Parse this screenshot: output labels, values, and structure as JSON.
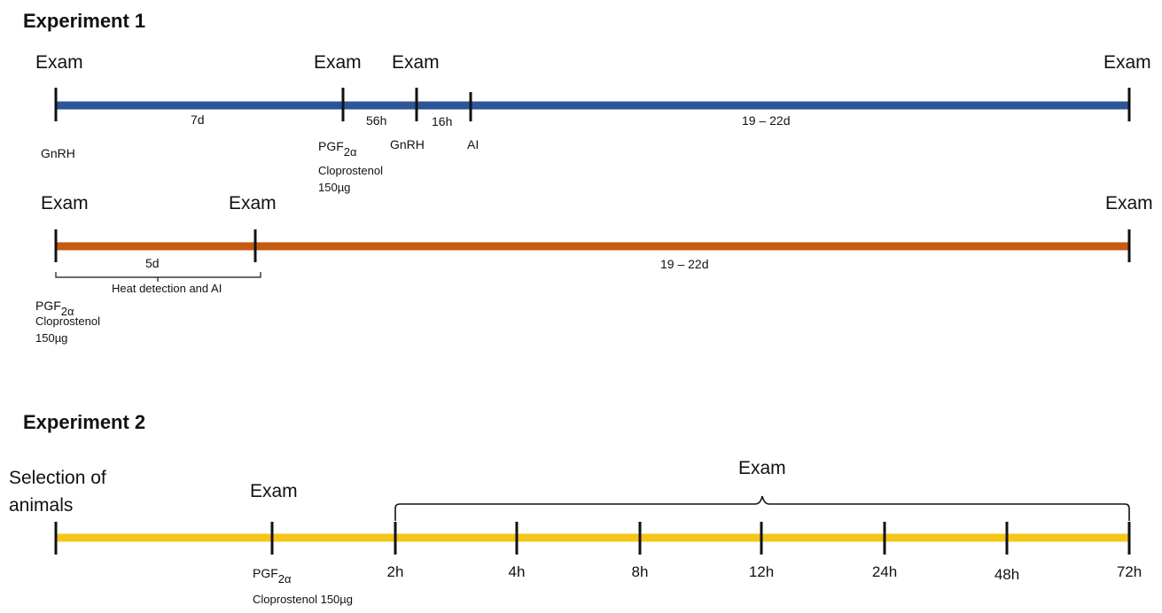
{
  "colors": {
    "blue_line": "#2e5597",
    "orange_line": "#c55a11",
    "yellow_line": "#f5c518",
    "tick": "#111111"
  },
  "experiment1": {
    "heading": "Experiment 1",
    "blue": {
      "exam_labels": [
        "Exam",
        "Exam",
        "Exam",
        "Exam"
      ],
      "intervals": [
        "7d",
        "56h",
        "16h",
        "19 – 22d"
      ],
      "events": {
        "gnrh1": "GnRH",
        "pgf_main": "PGF",
        "pgf_sub": "2α",
        "pgf_drug": "Cloprostenol",
        "pgf_dose": "150µg",
        "gnrh2": "GnRH",
        "ai": "AI"
      }
    },
    "orange": {
      "exam_labels": [
        "Exam",
        "Exam",
        "Exam"
      ],
      "intervals": [
        "5d",
        "19 – 22d"
      ],
      "bracket_label": "Heat detection and AI",
      "events": {
        "pgf_main": "PGF",
        "pgf_sub": "2α",
        "pgf_drug": "Cloprostenol",
        "pgf_dose": "150µg"
      }
    }
  },
  "experiment2": {
    "heading": "Experiment 2",
    "selection_line1": "Selection of",
    "selection_line2": "animals",
    "exam_pgf": "Exam",
    "exam_bracket": "Exam",
    "events": {
      "pgf_main": "PGF",
      "pgf_sub": "2α",
      "pgf_drug": "Cloprostenol 150µg"
    },
    "time_points": [
      "2h",
      "4h",
      "8h",
      "12h",
      "24h",
      "48h",
      "72h"
    ]
  }
}
